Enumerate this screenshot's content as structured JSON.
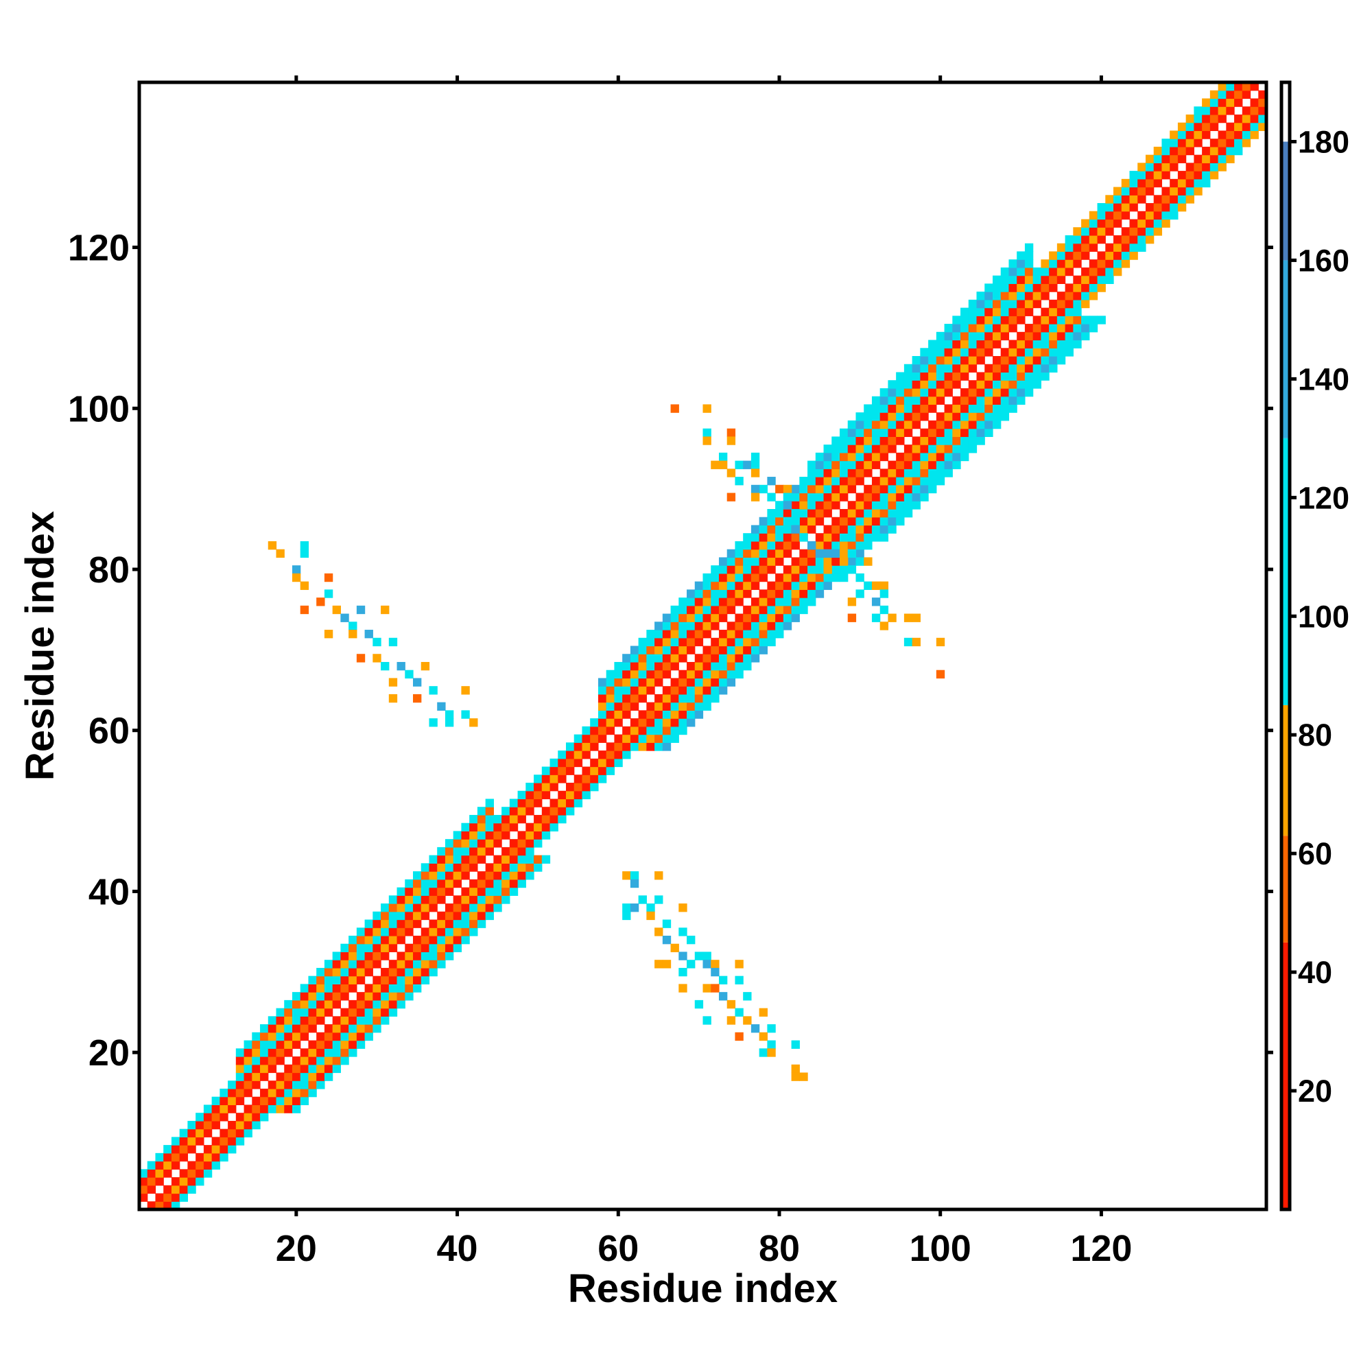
{
  "chart_data": {
    "type": "heatmap",
    "title": "",
    "xlabel": "Residue index",
    "ylabel": "Residue index",
    "xlim": [
      1,
      140
    ],
    "ylim": [
      1,
      140
    ],
    "x_ticks": [
      20,
      40,
      60,
      80,
      100,
      120
    ],
    "y_ticks": [
      20,
      40,
      60,
      80,
      100,
      120
    ],
    "grid": false,
    "colorbar": {
      "range": [
        0,
        190
      ],
      "ticks": [
        20,
        40,
        60,
        80,
        100,
        120,
        140,
        160,
        180
      ],
      "bands": [
        {
          "from": 0,
          "to": 45,
          "color": "#ff1a00"
        },
        {
          "from": 45,
          "to": 63,
          "color": "#ff6600"
        },
        {
          "from": 63,
          "to": 85,
          "color": "#ffa500"
        },
        {
          "from": 85,
          "to": 130,
          "color": "#00e5ee"
        },
        {
          "from": 130,
          "to": 160,
          "color": "#33aadd"
        },
        {
          "from": 160,
          "to": 180,
          "color": "#4a7fc0"
        },
        {
          "from": 180,
          "to": 190,
          "color": "#ffffff"
        }
      ]
    },
    "diagonal_band": {
      "segments": [
        {
          "from": 1,
          "to": 13,
          "width": 4
        },
        {
          "from": 13,
          "to": 45,
          "width": 7
        },
        {
          "from": 45,
          "to": 58,
          "width": 4
        },
        {
          "from": 58,
          "to": 84,
          "width": 8
        },
        {
          "from": 84,
          "to": 112,
          "width": 9
        },
        {
          "from": 112,
          "to": 140,
          "width": 5
        }
      ],
      "values_by_offset": [
        0,
        18,
        55,
        22,
        100,
        70,
        35,
        95,
        120,
        105
      ]
    },
    "off_diagonal_contacts": [
      {
        "x": 17,
        "y": 83,
        "v": 70
      },
      {
        "x": 18,
        "y": 82,
        "v": 70
      },
      {
        "x": 21,
        "y": 83,
        "v": 100
      },
      {
        "x": 21,
        "y": 82,
        "v": 100
      },
      {
        "x": 20,
        "y": 80,
        "v": 140
      },
      {
        "x": 20,
        "y": 79,
        "v": 70
      },
      {
        "x": 21,
        "y": 78,
        "v": 70
      },
      {
        "x": 24,
        "y": 79,
        "v": 60
      },
      {
        "x": 24,
        "y": 77,
        "v": 100
      },
      {
        "x": 23,
        "y": 76,
        "v": 55
      },
      {
        "x": 21,
        "y": 75,
        "v": 60
      },
      {
        "x": 25,
        "y": 75,
        "v": 70
      },
      {
        "x": 26,
        "y": 74,
        "v": 140
      },
      {
        "x": 28,
        "y": 75,
        "v": 140
      },
      {
        "x": 31,
        "y": 75,
        "v": 70
      },
      {
        "x": 27,
        "y": 73,
        "v": 100
      },
      {
        "x": 29,
        "y": 72,
        "v": 140
      },
      {
        "x": 24,
        "y": 72,
        "v": 70
      },
      {
        "x": 27,
        "y": 72,
        "v": 70
      },
      {
        "x": 30,
        "y": 71,
        "v": 100
      },
      {
        "x": 32,
        "y": 71,
        "v": 100
      },
      {
        "x": 28,
        "y": 69,
        "v": 60
      },
      {
        "x": 30,
        "y": 69,
        "v": 70
      },
      {
        "x": 31,
        "y": 68,
        "v": 100
      },
      {
        "x": 33,
        "y": 68,
        "v": 140
      },
      {
        "x": 34,
        "y": 67,
        "v": 100
      },
      {
        "x": 36,
        "y": 68,
        "v": 70
      },
      {
        "x": 32,
        "y": 66,
        "v": 70
      },
      {
        "x": 35,
        "y": 66,
        "v": 140
      },
      {
        "x": 37,
        "y": 65,
        "v": 100
      },
      {
        "x": 41,
        "y": 65,
        "v": 70
      },
      {
        "x": 32,
        "y": 64,
        "v": 70
      },
      {
        "x": 35,
        "y": 64,
        "v": 60
      },
      {
        "x": 38,
        "y": 63,
        "v": 140
      },
      {
        "x": 39,
        "y": 62,
        "v": 100
      },
      {
        "x": 41,
        "y": 62,
        "v": 100
      },
      {
        "x": 37,
        "y": 61,
        "v": 100
      },
      {
        "x": 39,
        "y": 61,
        "v": 100
      },
      {
        "x": 42,
        "y": 61,
        "v": 70
      },
      {
        "x": 61,
        "y": 42,
        "v": 70
      },
      {
        "x": 62,
        "y": 42,
        "v": 100
      },
      {
        "x": 65,
        "y": 42,
        "v": 70
      },
      {
        "x": 62,
        "y": 41,
        "v": 140
      },
      {
        "x": 63,
        "y": 39,
        "v": 100
      },
      {
        "x": 65,
        "y": 39,
        "v": 100
      },
      {
        "x": 61,
        "y": 38,
        "v": 100
      },
      {
        "x": 62,
        "y": 38,
        "v": 140
      },
      {
        "x": 64,
        "y": 38,
        "v": 100
      },
      {
        "x": 68,
        "y": 38,
        "v": 70
      },
      {
        "x": 61,
        "y": 37,
        "v": 100
      },
      {
        "x": 64,
        "y": 37,
        "v": 70
      },
      {
        "x": 66,
        "y": 36,
        "v": 100
      },
      {
        "x": 68,
        "y": 35,
        "v": 100
      },
      {
        "x": 65,
        "y": 35,
        "v": 70
      },
      {
        "x": 66,
        "y": 34,
        "v": 140
      },
      {
        "x": 69,
        "y": 34,
        "v": 100
      },
      {
        "x": 67,
        "y": 33,
        "v": 70
      },
      {
        "x": 68,
        "y": 32,
        "v": 140
      },
      {
        "x": 70,
        "y": 32,
        "v": 100
      },
      {
        "x": 71,
        "y": 32,
        "v": 100
      },
      {
        "x": 65,
        "y": 31,
        "v": 70
      },
      {
        "x": 66,
        "y": 31,
        "v": 70
      },
      {
        "x": 69,
        "y": 31,
        "v": 100
      },
      {
        "x": 71,
        "y": 31,
        "v": 140
      },
      {
        "x": 72,
        "y": 31,
        "v": 70
      },
      {
        "x": 75,
        "y": 31,
        "v": 70
      },
      {
        "x": 68,
        "y": 30,
        "v": 100
      },
      {
        "x": 72,
        "y": 30,
        "v": 140
      },
      {
        "x": 73,
        "y": 29,
        "v": 100
      },
      {
        "x": 75,
        "y": 29,
        "v": 100
      },
      {
        "x": 68,
        "y": 28,
        "v": 70
      },
      {
        "x": 71,
        "y": 28,
        "v": 70
      },
      {
        "x": 72,
        "y": 28,
        "v": 60
      },
      {
        "x": 73,
        "y": 27,
        "v": 140
      },
      {
        "x": 76,
        "y": 27,
        "v": 100
      },
      {
        "x": 70,
        "y": 26,
        "v": 100
      },
      {
        "x": 74,
        "y": 26,
        "v": 70
      },
      {
        "x": 75,
        "y": 25,
        "v": 100
      },
      {
        "x": 78,
        "y": 25,
        "v": 70
      },
      {
        "x": 71,
        "y": 24,
        "v": 100
      },
      {
        "x": 74,
        "y": 24,
        "v": 70
      },
      {
        "x": 76,
        "y": 24,
        "v": 70
      },
      {
        "x": 77,
        "y": 23,
        "v": 140
      },
      {
        "x": 79,
        "y": 23,
        "v": 100
      },
      {
        "x": 75,
        "y": 22,
        "v": 55
      },
      {
        "x": 78,
        "y": 22,
        "v": 70
      },
      {
        "x": 79,
        "y": 21,
        "v": 100
      },
      {
        "x": 82,
        "y": 21,
        "v": 100
      },
      {
        "x": 78,
        "y": 20,
        "v": 100
      },
      {
        "x": 79,
        "y": 20,
        "v": 70
      },
      {
        "x": 82,
        "y": 18,
        "v": 70
      },
      {
        "x": 82,
        "y": 17,
        "v": 70
      },
      {
        "x": 83,
        "y": 17,
        "v": 70
      },
      {
        "x": 67,
        "y": 100,
        "v": 55
      },
      {
        "x": 71,
        "y": 100,
        "v": 70
      },
      {
        "x": 71,
        "y": 97,
        "v": 100
      },
      {
        "x": 74,
        "y": 97,
        "v": 55
      },
      {
        "x": 71,
        "y": 96,
        "v": 70
      },
      {
        "x": 74,
        "y": 96,
        "v": 70
      },
      {
        "x": 73,
        "y": 94,
        "v": 100
      },
      {
        "x": 77,
        "y": 94,
        "v": 100
      },
      {
        "x": 72,
        "y": 93,
        "v": 70
      },
      {
        "x": 73,
        "y": 93,
        "v": 70
      },
      {
        "x": 75,
        "y": 93,
        "v": 100
      },
      {
        "x": 76,
        "y": 93,
        "v": 140
      },
      {
        "x": 77,
        "y": 93,
        "v": 100
      },
      {
        "x": 74,
        "y": 92,
        "v": 70
      },
      {
        "x": 77,
        "y": 92,
        "v": 70
      },
      {
        "x": 75,
        "y": 91,
        "v": 100
      },
      {
        "x": 78,
        "y": 90,
        "v": 100
      },
      {
        "x": 79,
        "y": 91,
        "v": 140
      },
      {
        "x": 77,
        "y": 90,
        "v": 140
      },
      {
        "x": 79,
        "y": 89,
        "v": 100
      },
      {
        "x": 80,
        "y": 90,
        "v": 55
      },
      {
        "x": 81,
        "y": 90,
        "v": 70
      },
      {
        "x": 74,
        "y": 89,
        "v": 55
      },
      {
        "x": 77,
        "y": 89,
        "v": 70
      },
      {
        "x": 81,
        "y": 89,
        "v": 100
      },
      {
        "x": 81,
        "y": 88,
        "v": 140
      },
      {
        "x": 82,
        "y": 87,
        "v": 100
      },
      {
        "x": 81,
        "y": 86,
        "v": 100
      },
      {
        "x": 82,
        "y": 86,
        "v": 100
      },
      {
        "x": 82,
        "y": 85,
        "v": 140
      },
      {
        "x": 83,
        "y": 84,
        "v": 100
      },
      {
        "x": 84,
        "y": 83,
        "v": 140
      },
      {
        "x": 85,
        "y": 82,
        "v": 140
      },
      {
        "x": 86,
        "y": 82,
        "v": 140
      },
      {
        "x": 87,
        "y": 82,
        "v": 140
      },
      {
        "x": 88,
        "y": 82,
        "v": 70
      },
      {
        "x": 89,
        "y": 82,
        "v": 100
      },
      {
        "x": 90,
        "y": 81,
        "v": 100
      },
      {
        "x": 91,
        "y": 81,
        "v": 70
      },
      {
        "x": 88,
        "y": 81,
        "v": 70
      },
      {
        "x": 89,
        "y": 80,
        "v": 100
      },
      {
        "x": 86,
        "y": 80,
        "v": 70
      },
      {
        "x": 88,
        "y": 79,
        "v": 100
      },
      {
        "x": 90,
        "y": 79,
        "v": 100
      },
      {
        "x": 91,
        "y": 78,
        "v": 100
      },
      {
        "x": 92,
        "y": 78,
        "v": 70
      },
      {
        "x": 93,
        "y": 78,
        "v": 70
      },
      {
        "x": 90,
        "y": 77,
        "v": 100
      },
      {
        "x": 93,
        "y": 77,
        "v": 100
      },
      {
        "x": 89,
        "y": 76,
        "v": 70
      },
      {
        "x": 92,
        "y": 76,
        "v": 140
      },
      {
        "x": 93,
        "y": 75,
        "v": 100
      },
      {
        "x": 89,
        "y": 74,
        "v": 55
      },
      {
        "x": 92,
        "y": 74,
        "v": 100
      },
      {
        "x": 94,
        "y": 74,
        "v": 70
      },
      {
        "x": 96,
        "y": 74,
        "v": 70
      },
      {
        "x": 97,
        "y": 74,
        "v": 70
      },
      {
        "x": 93,
        "y": 73,
        "v": 70
      },
      {
        "x": 96,
        "y": 71,
        "v": 100
      },
      {
        "x": 97,
        "y": 71,
        "v": 70
      },
      {
        "x": 100,
        "y": 71,
        "v": 70
      },
      {
        "x": 100,
        "y": 67,
        "v": 55
      }
    ]
  }
}
